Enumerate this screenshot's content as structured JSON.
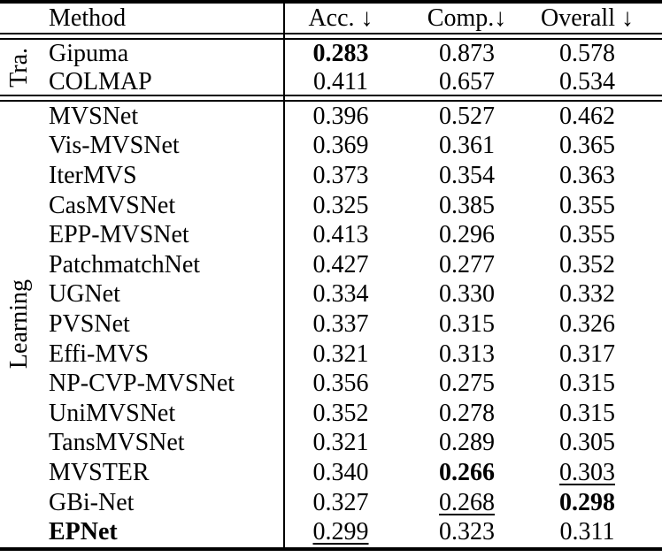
{
  "page": {
    "background_color": "#ffffff",
    "text_color": "#000000",
    "rule_color": "#000000"
  },
  "table": {
    "headers": {
      "method": "Method",
      "acc": "Acc. ↓",
      "comp": "Comp.↓",
      "overall": "Overall ↓"
    },
    "groups": [
      {
        "label": "Tra.",
        "rows": [
          {
            "method": "Gipuma",
            "acc": "0.283",
            "comp": "0.873",
            "overall": "0.578",
            "styles": {
              "acc": "bold"
            }
          },
          {
            "method": "COLMAP",
            "acc": "0.411",
            "comp": "0.657",
            "overall": "0.534",
            "styles": {}
          }
        ]
      },
      {
        "label": "Learning",
        "rows": [
          {
            "method": "MVSNet",
            "acc": "0.396",
            "comp": "0.527",
            "overall": "0.462",
            "styles": {}
          },
          {
            "method": "Vis-MVSNet",
            "acc": "0.369",
            "comp": "0.361",
            "overall": "0.365",
            "styles": {}
          },
          {
            "method": "IterMVS",
            "acc": "0.373",
            "comp": "0.354",
            "overall": "0.363",
            "styles": {}
          },
          {
            "method": "CasMVSNet",
            "acc": "0.325",
            "comp": "0.385",
            "overall": "0.355",
            "styles": {}
          },
          {
            "method": "EPP-MVSNet",
            "acc": "0.413",
            "comp": "0.296",
            "overall": "0.355",
            "styles": {}
          },
          {
            "method": "PatchmatchNet",
            "acc": "0.427",
            "comp": "0.277",
            "overall": "0.352",
            "styles": {}
          },
          {
            "method": "UGNet",
            "acc": "0.334",
            "comp": "0.330",
            "overall": "0.332",
            "styles": {}
          },
          {
            "method": "PVSNet",
            "acc": "0.337",
            "comp": "0.315",
            "overall": "0.326",
            "styles": {}
          },
          {
            "method": "Effi-MVS",
            "acc": "0.321",
            "comp": "0.313",
            "overall": "0.317",
            "styles": {}
          },
          {
            "method": "NP-CVP-MVSNet",
            "acc": "0.356",
            "comp": "0.275",
            "overall": "0.315",
            "styles": {}
          },
          {
            "method": "UniMVSNet",
            "acc": "0.352",
            "comp": "0.278",
            "overall": "0.315",
            "styles": {}
          },
          {
            "method": "TansMVSNet",
            "acc": "0.321",
            "comp": "0.289",
            "overall": "0.305",
            "styles": {}
          },
          {
            "method": "MVSTER",
            "acc": "0.340",
            "comp": "0.266",
            "overall": "0.303",
            "styles": {
              "comp": "bold",
              "overall": "underline"
            }
          },
          {
            "method": "GBi-Net",
            "acc": "0.327",
            "comp": "0.268",
            "overall": "0.298",
            "styles": {
              "comp": "underline",
              "overall": "bold"
            }
          },
          {
            "method": "EPNet",
            "acc": "0.299",
            "comp": "0.323",
            "overall": "0.311",
            "styles": {
              "method": "bold",
              "acc": "underline"
            }
          }
        ]
      }
    ]
  },
  "chart_data": {
    "type": "table",
    "columns": [
      "Method",
      "Acc. ↓",
      "Comp.↓",
      "Overall ↓"
    ],
    "row_groups": [
      {
        "group": "Tra.",
        "rows": [
          [
            "Gipuma",
            0.283,
            0.873,
            0.578
          ],
          [
            "COLMAP",
            0.411,
            0.657,
            0.534
          ]
        ]
      },
      {
        "group": "Learning",
        "rows": [
          [
            "MVSNet",
            0.396,
            0.527,
            0.462
          ],
          [
            "Vis-MVSNet",
            0.369,
            0.361,
            0.365
          ],
          [
            "IterMVS",
            0.373,
            0.354,
            0.363
          ],
          [
            "CasMVSNet",
            0.325,
            0.385,
            0.355
          ],
          [
            "EPP-MVSNet",
            0.413,
            0.296,
            0.355
          ],
          [
            "PatchmatchNet",
            0.427,
            0.277,
            0.352
          ],
          [
            "UGNet",
            0.334,
            0.33,
            0.332
          ],
          [
            "PVSNet",
            0.337,
            0.315,
            0.326
          ],
          [
            "Effi-MVS",
            0.321,
            0.313,
            0.317
          ],
          [
            "NP-CVP-MVSNet",
            0.356,
            0.275,
            0.315
          ],
          [
            "UniMVSNet",
            0.352,
            0.278,
            0.315
          ],
          [
            "TansMVSNet",
            0.321,
            0.289,
            0.305
          ],
          [
            "MVSTER",
            0.34,
            0.266,
            0.303
          ],
          [
            "GBi-Net",
            0.327,
            0.268,
            0.298
          ],
          [
            "EPNet",
            0.299,
            0.323,
            0.311
          ]
        ]
      }
    ],
    "emphasis": {
      "bold_best": [
        "Gipuma Acc. 0.283",
        "MVSTER Comp. 0.266",
        "GBi-Net Overall 0.298",
        "EPNet (method name)"
      ],
      "underline_second_best": [
        "EPNet Acc. 0.299",
        "GBi-Net Comp. 0.268",
        "MVSTER Overall 0.303"
      ]
    }
  }
}
